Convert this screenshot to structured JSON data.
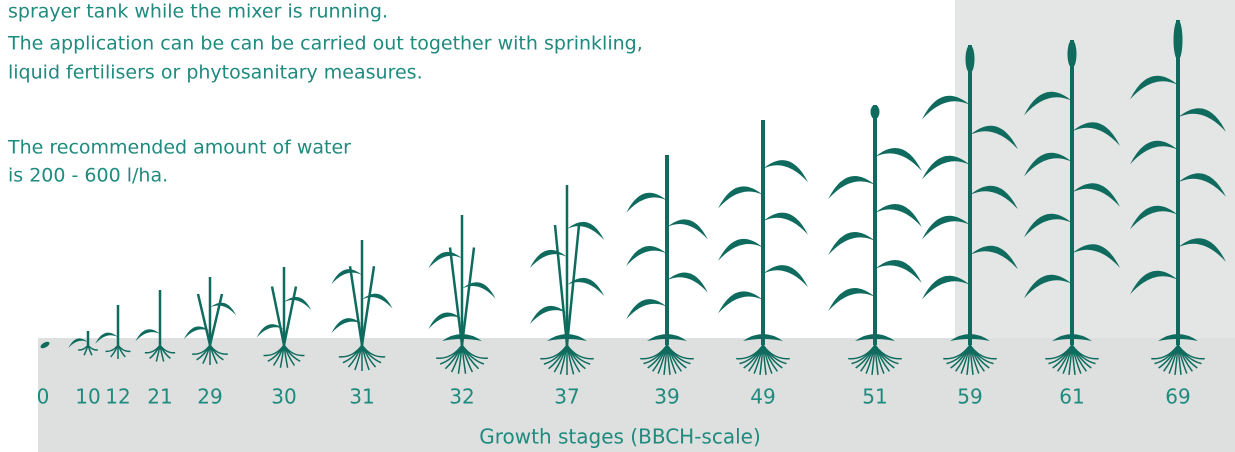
{
  "body": {
    "paragraphs": [
      [
        "sprayer tank while the mixer is running."
      ],
      [
        "The application can be can be carried out together with sprinkling,",
        "liquid fertilisers or phytosanitary measures."
      ],
      [
        "The recommended amount of water",
        "is 200 - 600 l/ha."
      ]
    ]
  },
  "growth_stages": {
    "labels": [
      0,
      10,
      12,
      21,
      29,
      30,
      31,
      32,
      37,
      39,
      49,
      51,
      59,
      61,
      69
    ],
    "caption": "Growth stages (BBCH-scale)"
  }
}
